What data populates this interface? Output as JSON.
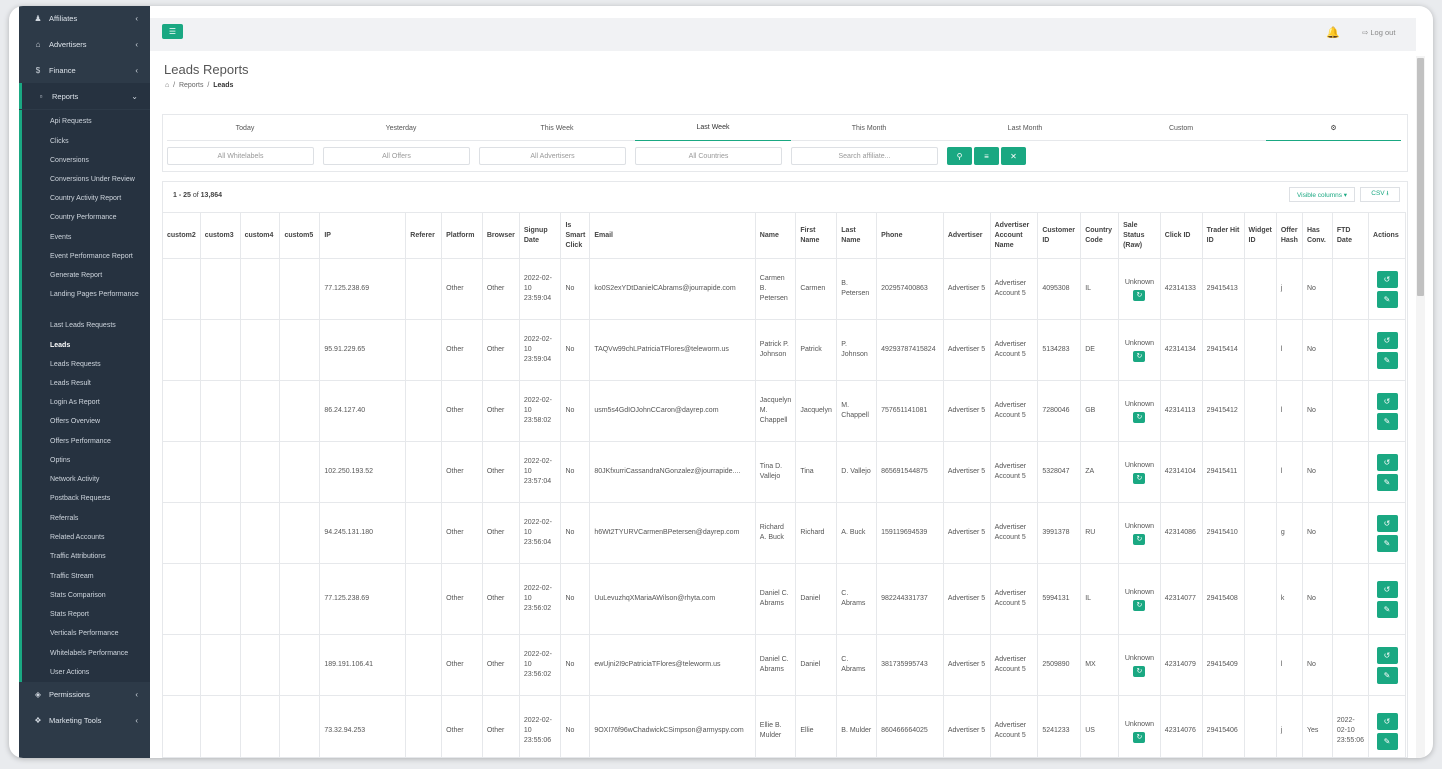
{
  "sidebar": {
    "top_items": [
      {
        "label": "Affiliates",
        "icon": "users-icon"
      },
      {
        "label": "Advertisers",
        "icon": "bank-icon"
      },
      {
        "label": "Finance",
        "icon": "dollar-icon"
      },
      {
        "label": "Reports",
        "icon": "file-icon"
      }
    ],
    "report_items": [
      "Api Requests",
      "Clicks",
      "Conversions",
      "Conversions Under Review",
      "Country Activity Report",
      "Country Performance",
      "Events",
      "Event Performance Report",
      "Generate Report",
      "Landing Pages Performance",
      "Last Leads Requests",
      "Leads",
      "Leads Requests",
      "Leads Result",
      "Login As Report",
      "Offers Overview",
      "Offers Performance",
      "Optins",
      "Network Activity",
      "Postback Requests",
      "Referrals",
      "Related Accounts",
      "Traffic Attributions",
      "Traffic Stream",
      "Stats Comparison",
      "Stats Report",
      "Verticals Performance",
      "Whitelabels Performance",
      "User Actions"
    ],
    "bottom_items": [
      {
        "label": "Permissions",
        "icon": "shield-icon"
      },
      {
        "label": "Marketing Tools",
        "icon": "puzzle-icon"
      }
    ]
  },
  "topbar": {
    "logout_label": "Log out"
  },
  "page": {
    "title": "Leads Reports",
    "breadcrumb": {
      "home_icon": "home-icon",
      "reports": "Reports",
      "current": "Leads"
    }
  },
  "filters": {
    "tabs": [
      "Today",
      "Yesterday",
      "This Week",
      "Last Week",
      "This Month",
      "Last Month",
      "Custom"
    ],
    "active_tab": "Last Week",
    "settings_icon": "cogs-icon",
    "placeholders": [
      "All Whitelabels",
      "All Offers",
      "All Advertisers",
      "All Countries",
      "Search affiliate..."
    ]
  },
  "table": {
    "count_range": "1 - 25",
    "count_of": "of",
    "count_total": "13,864",
    "visible_columns_label": "Visible columns ▾",
    "csv_label": "CSV ⭳",
    "columns": [
      "custom2",
      "custom3",
      "custom4",
      "custom5",
      "IP",
      "Referer",
      "Platform",
      "Browser",
      "Signup Date",
      "Is Smart Click",
      "Email",
      "Name",
      "First Name",
      "Last Name",
      "Phone",
      "Advertiser",
      "Advertiser Account Name",
      "Customer ID",
      "Country Code",
      "Sale Status (Raw)",
      "Click ID",
      "Trader Hit ID",
      "Widget ID",
      "Offer Hash",
      "Has Conv.",
      "FTD Date",
      "Actions"
    ],
    "rows": [
      {
        "ip": "77.125.238.69",
        "platform": "Other",
        "browser": "Other",
        "signup": "2022-02-10 23:59:04",
        "smart": "No",
        "email": "ko0S2exYDtDanielCAbrams@jourrapide.com",
        "name": "Carmen B. Petersen",
        "first": "Carmen",
        "last": "B. Petersen",
        "phone": "202957400863",
        "advertiser": "Advertiser 5",
        "account": "Advertiser Account 5",
        "customer": "4095308",
        "country": "IL",
        "status": "Unknown",
        "click": "42314133",
        "trader": "29415413",
        "widget": "",
        "hash": "j",
        "conv": "No",
        "ftd": ""
      },
      {
        "ip": "95.91.229.65",
        "platform": "Other",
        "browser": "Other",
        "signup": "2022-02-10 23:59:04",
        "smart": "No",
        "email": "TAQVw99chLPatriciaTFlores@teleworm.us",
        "name": "Patrick P. Johnson",
        "first": "Patrick",
        "last": "P. Johnson",
        "phone": "49293787415824",
        "advertiser": "Advertiser 5",
        "account": "Advertiser Account 5",
        "customer": "5134283",
        "country": "DE",
        "status": "Unknown",
        "click": "42314134",
        "trader": "29415414",
        "widget": "",
        "hash": "l",
        "conv": "No",
        "ftd": ""
      },
      {
        "ip": "86.24.127.40",
        "platform": "Other",
        "browser": "Other",
        "signup": "2022-02-10 23:58:02",
        "smart": "No",
        "email": "usm5s4GdIOJohnCCaron@dayrep.com",
        "name": "Jacquelyn M. Chappell",
        "first": "Jacquelyn",
        "last": "M. Chappell",
        "phone": "757651141081",
        "advertiser": "Advertiser 5",
        "account": "Advertiser Account 5",
        "customer": "7280046",
        "country": "GB",
        "status": "Unknown",
        "click": "42314113",
        "trader": "29415412",
        "widget": "",
        "hash": "l",
        "conv": "No",
        "ftd": ""
      },
      {
        "ip": "102.250.193.52",
        "platform": "Other",
        "browser": "Other",
        "signup": "2022-02-10 23:57:04",
        "smart": "No",
        "email": "80JKfxurriCassandraNGonzalez@jourrapide....",
        "name": "Tina D. Vallejo",
        "first": "Tina",
        "last": "D. Vallejo",
        "phone": "865691544875",
        "advertiser": "Advertiser 5",
        "account": "Advertiser Account 5",
        "customer": "5328047",
        "country": "ZA",
        "status": "Unknown",
        "click": "42314104",
        "trader": "29415411",
        "widget": "",
        "hash": "l",
        "conv": "No",
        "ftd": ""
      },
      {
        "ip": "94.245.131.180",
        "platform": "Other",
        "browser": "Other",
        "signup": "2022-02-10 23:56:04",
        "smart": "No",
        "email": "h6Wt2TYURVCarmenBPetersen@dayrep.com",
        "name": "Richard A. Buck",
        "first": "Richard",
        "last": "A. Buck",
        "phone": "159119694539",
        "advertiser": "Advertiser 5",
        "account": "Advertiser Account 5",
        "customer": "3991378",
        "country": "RU",
        "status": "Unknown",
        "click": "42314086",
        "trader": "29415410",
        "widget": "",
        "hash": "g",
        "conv": "No",
        "ftd": ""
      },
      {
        "ip": "77.125.238.69",
        "platform": "Other",
        "browser": "Other",
        "signup": "2022-02-10 23:56:02",
        "smart": "No",
        "email": "UuLevuzhqXMariaAWilson@rhyta.com",
        "name": "Daniel C. Abrams",
        "first": "Daniel",
        "last": "C. Abrams",
        "phone": "982244331737",
        "advertiser": "Advertiser 5",
        "account": "Advertiser Account 5",
        "customer": "5994131",
        "country": "IL",
        "status": "Unknown",
        "click": "42314077",
        "trader": "29415408",
        "widget": "",
        "hash": "k",
        "conv": "No",
        "ftd": ""
      },
      {
        "ip": "189.191.106.41",
        "platform": "Other",
        "browser": "Other",
        "signup": "2022-02-10 23:56:02",
        "smart": "No",
        "email": "ewUjni2I9cPatriciaTFlores@teleworm.us",
        "name": "Daniel C. Abrams",
        "first": "Daniel",
        "last": "C. Abrams",
        "phone": "381735995743",
        "advertiser": "Advertiser 5",
        "account": "Advertiser Account 5",
        "customer": "2509890",
        "country": "MX",
        "status": "Unknown",
        "click": "42314079",
        "trader": "29415409",
        "widget": "",
        "hash": "l",
        "conv": "No",
        "ftd": ""
      },
      {
        "ip": "73.32.94.253",
        "platform": "Other",
        "browser": "Other",
        "signup": "2022-02-10 23:55:06",
        "smart": "No",
        "email": "9OXI76f96wChadwickCSimpson@armyspy.com",
        "name": "Ellie B. Mulder",
        "first": "Ellie",
        "last": "B. Mulder",
        "phone": "860466664025",
        "advertiser": "Advertiser 5",
        "account": "Advertiser Account 5",
        "customer": "5241233",
        "country": "US",
        "status": "Unknown",
        "click": "42314076",
        "trader": "29415406",
        "widget": "",
        "hash": "j",
        "conv": "Yes",
        "ftd": "2022-02-10 23:55:06"
      }
    ]
  },
  "theme": {
    "accent": "#1aa882",
    "sidebar_bg": "#2d3a48"
  }
}
